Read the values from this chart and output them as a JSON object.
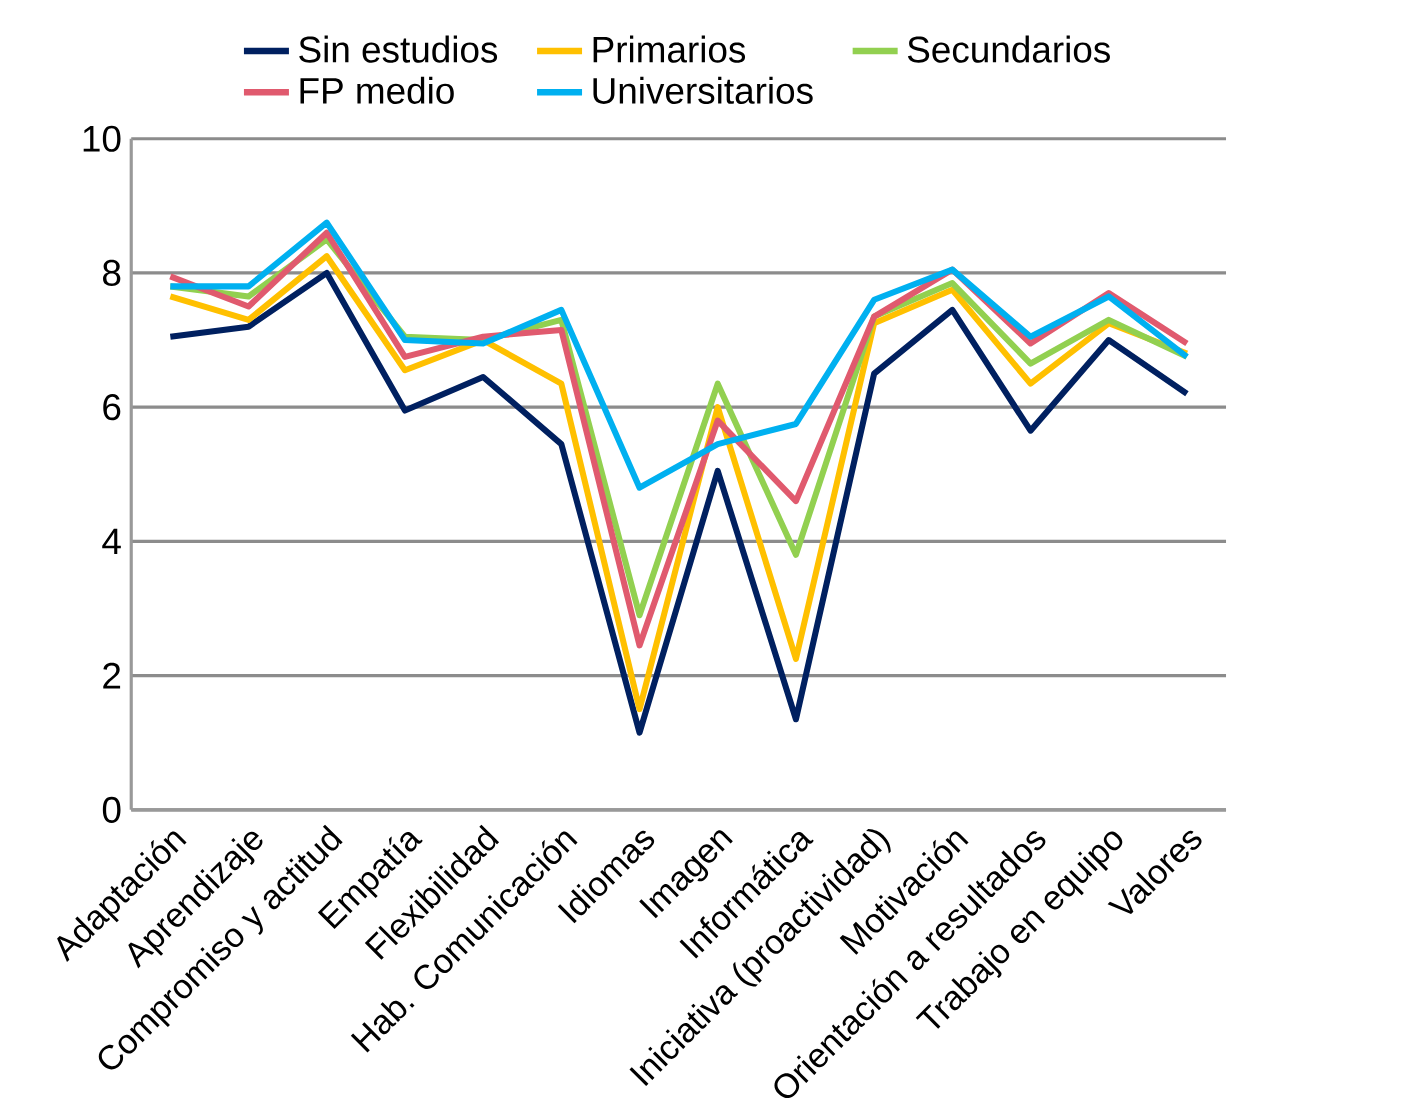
{
  "chart_data": {
    "type": "line",
    "categories": [
      "Adaptación",
      "Aprendizaje",
      "Compromiso y actitud",
      "Empatía",
      "Flexibilidad",
      "Hab. Comunicación",
      "Idiomas",
      "Imagen",
      "Informática",
      "Iniciativa (proactividad)",
      "Motivación",
      "Orientación a resultados",
      "Trabajo en equipo",
      "Valores"
    ],
    "series": [
      {
        "name": "Sin estudios",
        "color": "#002060",
        "values": [
          7.05,
          7.2,
          8.0,
          5.95,
          6.45,
          5.45,
          1.15,
          5.05,
          1.35,
          6.5,
          7.45,
          5.65,
          7.0,
          6.2
        ]
      },
      {
        "name": "Primarios",
        "color": "#ffc000",
        "values": [
          7.65,
          7.3,
          8.25,
          6.55,
          7.0,
          6.35,
          1.5,
          6.0,
          2.25,
          7.25,
          7.75,
          6.35,
          7.25,
          6.8
        ]
      },
      {
        "name": "Secundarios",
        "color": "#92d050",
        "values": [
          7.8,
          7.65,
          8.5,
          7.05,
          7.0,
          7.3,
          2.9,
          6.35,
          3.8,
          7.35,
          7.85,
          6.65,
          7.3,
          6.75
        ]
      },
      {
        "name": "FP medio",
        "color": "#e05a6e",
        "values": [
          7.95,
          7.5,
          8.6,
          6.75,
          7.05,
          7.15,
          2.45,
          5.8,
          4.6,
          7.35,
          8.05,
          6.95,
          7.7,
          6.95
        ]
      },
      {
        "name": "Universitarios",
        "color": "#00b0f0",
        "values": [
          7.8,
          7.8,
          8.75,
          7.0,
          6.95,
          7.45,
          4.8,
          5.45,
          5.75,
          7.6,
          8.05,
          7.05,
          7.65,
          6.75
        ]
      }
    ],
    "ylim": [
      0,
      10
    ],
    "yticks": [
      0,
      2,
      4,
      6,
      8,
      10
    ],
    "grid": "y",
    "legend": "top",
    "marker": "none",
    "line_style": "solid"
  }
}
